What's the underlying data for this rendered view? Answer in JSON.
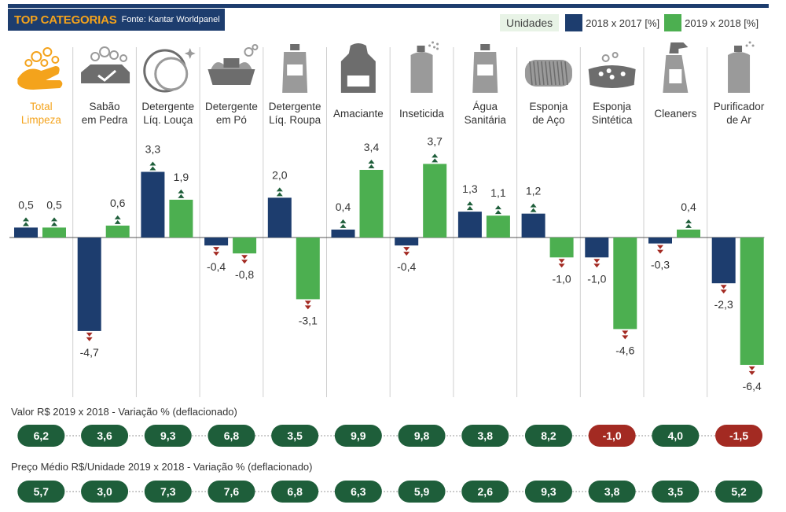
{
  "header": {
    "title": "TOP CATEGORIAS",
    "source": "Fonte: Kantar Worldpanel"
  },
  "legend": {
    "units_label": "Unidades",
    "series_1": "2018 x 2017 [%]",
    "series_2": "2019 x 2018 [%]"
  },
  "colors": {
    "series_1": "#1d3d6e",
    "series_2": "#4caf50",
    "pill_positive": "#1e5e3a",
    "pill_negative": "#a32a22",
    "highlight": "#f4a31c",
    "arrow_up": "#1e5e3a",
    "arrow_down": "#a32a22"
  },
  "chart_data": {
    "type": "bar",
    "categories": [
      {
        "line1": "Total",
        "line2": "Limpeza",
        "icon": "hand-washing-icon",
        "highlight": true
      },
      {
        "line1": "Sabão",
        "line2": "em Pedra",
        "icon": "soap-bar-icon",
        "highlight": false
      },
      {
        "line1": "Detergente",
        "line2": "Líq. Louça",
        "icon": "dishes-icon",
        "highlight": false
      },
      {
        "line1": "Detergente",
        "line2": "em Pó",
        "icon": "laundry-basin-icon",
        "highlight": false
      },
      {
        "line1": "Detergente",
        "line2": "Líq. Roupa",
        "icon": "liquid-detergent-bottle-icon",
        "highlight": false
      },
      {
        "line1": "Amaciante",
        "line2": "",
        "icon": "softener-bottle-icon",
        "highlight": false
      },
      {
        "line1": "Inseticida",
        "line2": "",
        "icon": "spray-can-icon",
        "highlight": false
      },
      {
        "line1": "Água",
        "line2": "Sanitária",
        "icon": "bleach-bottle-icon",
        "highlight": false
      },
      {
        "line1": "Esponja",
        "line2": "de Aço",
        "icon": "steel-wool-icon",
        "highlight": false
      },
      {
        "line1": "Esponja",
        "line2": "Sintética",
        "icon": "sponge-icon",
        "highlight": false
      },
      {
        "line1": "Cleaners",
        "line2": "",
        "icon": "trigger-spray-icon",
        "highlight": false
      },
      {
        "line1": "Purificador",
        "line2": "de Ar",
        "icon": "air-freshener-icon",
        "highlight": false
      }
    ],
    "series": [
      {
        "name": "2018 x 2017 [%]",
        "values": [
          0.5,
          -4.7,
          3.3,
          -0.4,
          2.0,
          0.4,
          -0.4,
          1.3,
          1.2,
          -1.0,
          -0.3,
          -2.3
        ],
        "labels": [
          "0,5",
          "-4,7",
          "3,3",
          "-0,4",
          "2,0",
          "0,4",
          "-0,4",
          "1,3",
          "1,2",
          "-1,0",
          "-0,3",
          "-2,3"
        ]
      },
      {
        "name": "2019 x 2018 [%]",
        "values": [
          0.5,
          0.6,
          1.9,
          -0.8,
          -3.1,
          3.4,
          3.7,
          1.1,
          -1.0,
          -4.6,
          0.4,
          -6.4
        ],
        "labels": [
          "0,5",
          "0,6",
          "1,9",
          "-0,8",
          "-3,1",
          "3,4",
          "3,7",
          "1,1",
          "-1,0",
          "-4,6",
          "0,4",
          "-6,4"
        ]
      }
    ],
    "ylim": [
      -6.6,
      3.8
    ]
  },
  "valor": {
    "title": "Valor R$ 2019 x 2018 - Variação % (deflacionado)",
    "values": [
      6.2,
      3.6,
      9.3,
      6.8,
      3.5,
      9.9,
      9.8,
      3.8,
      8.2,
      -1.0,
      4.0,
      -1.5
    ],
    "labels": [
      "6,2",
      "3,6",
      "9,3",
      "6,8",
      "3,5",
      "9,9",
      "9,8",
      "3,8",
      "8,2",
      "-1,0",
      "4,0",
      "-1,5"
    ]
  },
  "preco": {
    "title": "Preço Médio R$/Unidade 2019 x 2018 - Variação % (deflacionado)",
    "values": [
      5.7,
      3.0,
      7.3,
      7.6,
      6.8,
      6.3,
      5.9,
      2.6,
      9.3,
      3.8,
      3.5,
      5.2
    ],
    "labels": [
      "5,7",
      "3,0",
      "7,3",
      "7,6",
      "6,8",
      "6,3",
      "5,9",
      "2,6",
      "9,3",
      "3,8",
      "3,5",
      "5,2"
    ]
  }
}
